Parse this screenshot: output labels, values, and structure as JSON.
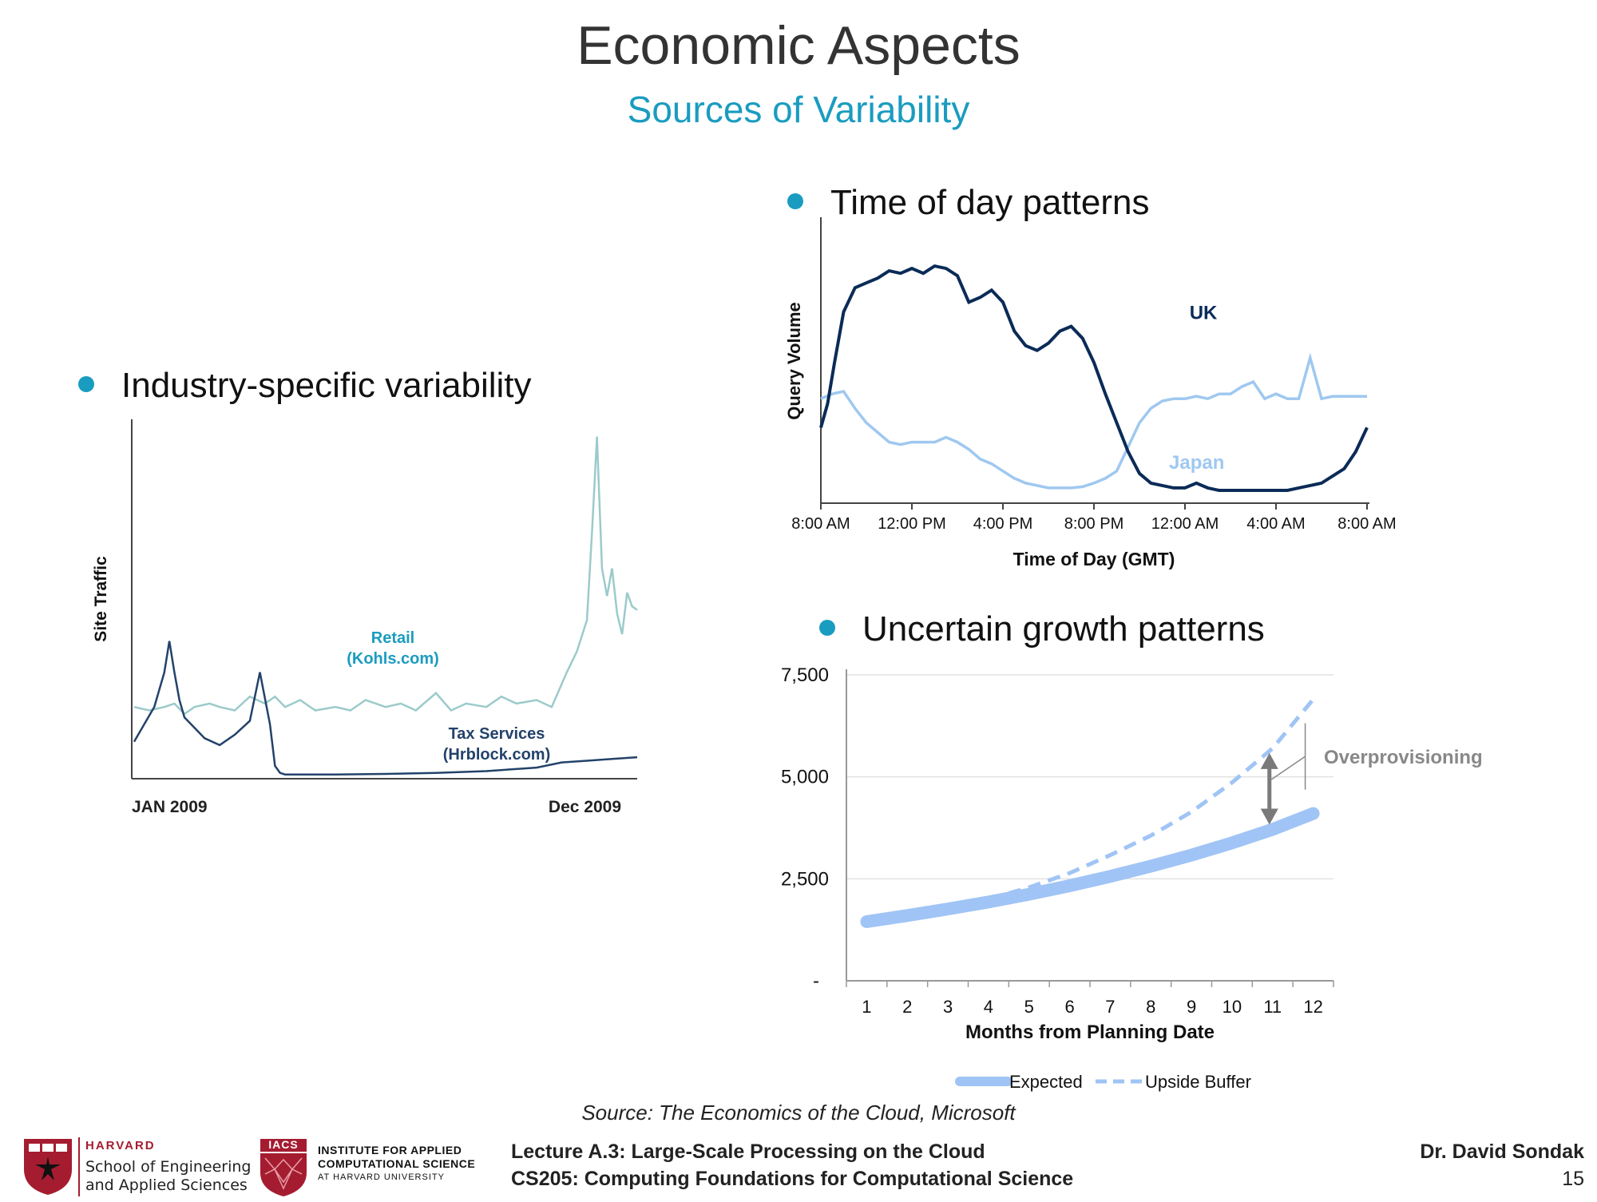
{
  "slide": {
    "title": "Economic Aspects",
    "subtitle": "Sources of Variability",
    "bullets": {
      "industry": "Industry-specific variability",
      "time_of_day": "Time of day patterns",
      "growth": "Uncertain growth patterns"
    },
    "source": "Source: The Economics of the Cloud, Microsoft",
    "footer": {
      "harvard_word": "HARVARD",
      "harvard_school_line1": "School of Engineering",
      "harvard_school_line2": "and Applied Sciences",
      "iacs_badge": "IACS",
      "iacs_line1": "INSTITUTE FOR APPLIED",
      "iacs_line2": "COMPUTATIONAL SCIENCE",
      "iacs_line3": "AT HARVARD UNIVERSITY",
      "lecture": "Lecture A.3: Large-Scale Processing on the Cloud",
      "course": "CS205: Computing Foundations for Computational Science",
      "author": "Dr. David Sondak",
      "page": "15"
    }
  },
  "colors": {
    "accent": "#1a9cc0",
    "retail": "#9ccacb",
    "tax": "#23426a",
    "uk": "#0b2b57",
    "japan": "#9fc8f0",
    "expected": "#a0c4f5",
    "upside": "#a0c4f5",
    "arrow": "#7a7a7a"
  },
  "chart_data": [
    {
      "type": "line",
      "ylabel": "Site Traffic",
      "x_tick_labels": [
        "JAN 2009",
        "Dec 2009"
      ],
      "series": [
        {
          "name": "Retail (Kohls.com)",
          "label_line1": "Retail",
          "label_line2": "(Kohls.com)",
          "x": [
            0,
            0.03,
            0.06,
            0.08,
            0.1,
            0.12,
            0.15,
            0.17,
            0.2,
            0.23,
            0.26,
            0.28,
            0.3,
            0.33,
            0.36,
            0.4,
            0.43,
            0.46,
            0.5,
            0.53,
            0.56,
            0.6,
            0.63,
            0.66,
            0.7,
            0.73,
            0.76,
            0.8,
            0.83,
            0.86,
            0.88,
            0.9,
            0.91,
            0.92,
            0.93,
            0.94,
            0.95,
            0.96,
            0.97,
            0.98,
            0.99,
            1.0
          ],
          "y": [
            0.2,
            0.19,
            0.2,
            0.21,
            0.18,
            0.2,
            0.21,
            0.2,
            0.19,
            0.23,
            0.21,
            0.23,
            0.2,
            0.22,
            0.19,
            0.2,
            0.19,
            0.22,
            0.2,
            0.21,
            0.19,
            0.24,
            0.19,
            0.21,
            0.2,
            0.23,
            0.21,
            0.22,
            0.2,
            0.3,
            0.36,
            0.45,
            0.7,
            0.98,
            0.6,
            0.52,
            0.6,
            0.47,
            0.41,
            0.53,
            0.49,
            0.48
          ]
        },
        {
          "name": "Tax Services (Hrblock.com)",
          "label_line1": "Tax Services",
          "label_line2": "(Hrblock.com)",
          "x": [
            0,
            0.02,
            0.04,
            0.06,
            0.07,
            0.08,
            0.09,
            0.1,
            0.12,
            0.14,
            0.17,
            0.2,
            0.23,
            0.25,
            0.27,
            0.28,
            0.29,
            0.3,
            0.31,
            0.35,
            0.4,
            0.5,
            0.6,
            0.7,
            0.8,
            0.85,
            0.9,
            0.95,
            1.0
          ],
          "y": [
            0.1,
            0.15,
            0.2,
            0.3,
            0.39,
            0.3,
            0.22,
            0.17,
            0.14,
            0.11,
            0.09,
            0.12,
            0.16,
            0.3,
            0.15,
            0.03,
            0.01,
            0.005,
            0.005,
            0.005,
            0.005,
            0.007,
            0.01,
            0.015,
            0.025,
            0.04,
            0.045,
            0.05,
            0.055
          ]
        }
      ]
    },
    {
      "type": "line",
      "xlabel": "Time of Day (GMT)",
      "ylabel": "Query Volume",
      "x_tick_labels": [
        "8:00 AM",
        "12:00 PM",
        "4:00 PM",
        "8:00 PM",
        "12:00 AM",
        "4:00 AM",
        "8:00 AM"
      ],
      "xlim": [
        0,
        24
      ],
      "series": [
        {
          "name": "UK",
          "x": [
            0,
            0.3,
            0.6,
            1,
            1.5,
            2,
            2.5,
            3,
            3.5,
            4,
            4.5,
            5,
            5.5,
            6,
            6.5,
            7,
            7.5,
            8,
            8.5,
            9,
            9.5,
            10,
            10.5,
            11,
            11.5,
            12,
            12.5,
            13,
            13.5,
            14,
            14.5,
            15,
            15.5,
            16,
            16.5,
            17,
            17.5,
            18,
            18.5,
            19,
            19.5,
            20,
            20.5,
            21,
            21.5,
            22,
            22.5,
            23,
            23.5,
            24
          ],
          "y": [
            0.28,
            0.38,
            0.55,
            0.76,
            0.86,
            0.88,
            0.9,
            0.93,
            0.92,
            0.94,
            0.92,
            0.95,
            0.94,
            0.91,
            0.8,
            0.82,
            0.85,
            0.8,
            0.68,
            0.62,
            0.6,
            0.63,
            0.68,
            0.7,
            0.65,
            0.55,
            0.42,
            0.3,
            0.18,
            0.09,
            0.05,
            0.04,
            0.03,
            0.03,
            0.05,
            0.03,
            0.02,
            0.02,
            0.02,
            0.02,
            0.02,
            0.02,
            0.02,
            0.03,
            0.04,
            0.05,
            0.08,
            0.11,
            0.18,
            0.28
          ]
        },
        {
          "name": "Japan",
          "x": [
            0,
            0.5,
            1,
            1.5,
            2,
            2.5,
            3,
            3.5,
            4,
            4.5,
            5,
            5.5,
            6,
            6.5,
            7,
            7.5,
            8,
            8.5,
            9,
            9.5,
            10,
            10.5,
            11,
            11.5,
            12,
            12.5,
            13,
            13.5,
            14,
            14.5,
            15,
            15.5,
            16,
            16.5,
            17,
            17.5,
            18,
            18.5,
            19,
            19.5,
            20,
            20.5,
            21,
            21.5,
            22,
            22.5,
            23,
            23.5,
            24
          ],
          "y": [
            0.4,
            0.42,
            0.43,
            0.36,
            0.3,
            0.26,
            0.22,
            0.21,
            0.22,
            0.22,
            0.22,
            0.24,
            0.22,
            0.19,
            0.15,
            0.13,
            0.1,
            0.07,
            0.05,
            0.04,
            0.03,
            0.03,
            0.03,
            0.035,
            0.05,
            0.07,
            0.1,
            0.2,
            0.3,
            0.36,
            0.39,
            0.4,
            0.4,
            0.41,
            0.4,
            0.42,
            0.42,
            0.45,
            0.47,
            0.4,
            0.42,
            0.4,
            0.4,
            0.57,
            0.4,
            0.41,
            0.41,
            0.41,
            0.41
          ]
        }
      ]
    },
    {
      "type": "line",
      "xlabel": "Months from Planning Date",
      "categories": [
        "1",
        "2",
        "3",
        "4",
        "5",
        "6",
        "7",
        "8",
        "9",
        "10",
        "11",
        "12"
      ],
      "y_tick_labels": [
        "-",
        "2,500",
        "5,000",
        "7,500"
      ],
      "ylim": [
        0,
        7500
      ],
      "annotation": "Overprovisioning",
      "legend": "bottom",
      "series": [
        {
          "name": "Expected",
          "values": [
            1450,
            1600,
            1760,
            1930,
            2120,
            2330,
            2560,
            2810,
            3080,
            3380,
            3710,
            4100
          ]
        },
        {
          "name": "Upside Buffer",
          "values": [
            1450,
            1620,
            1800,
            2000,
            2290,
            2640,
            3080,
            3560,
            4140,
            4860,
            5700,
            6900
          ]
        }
      ]
    }
  ]
}
